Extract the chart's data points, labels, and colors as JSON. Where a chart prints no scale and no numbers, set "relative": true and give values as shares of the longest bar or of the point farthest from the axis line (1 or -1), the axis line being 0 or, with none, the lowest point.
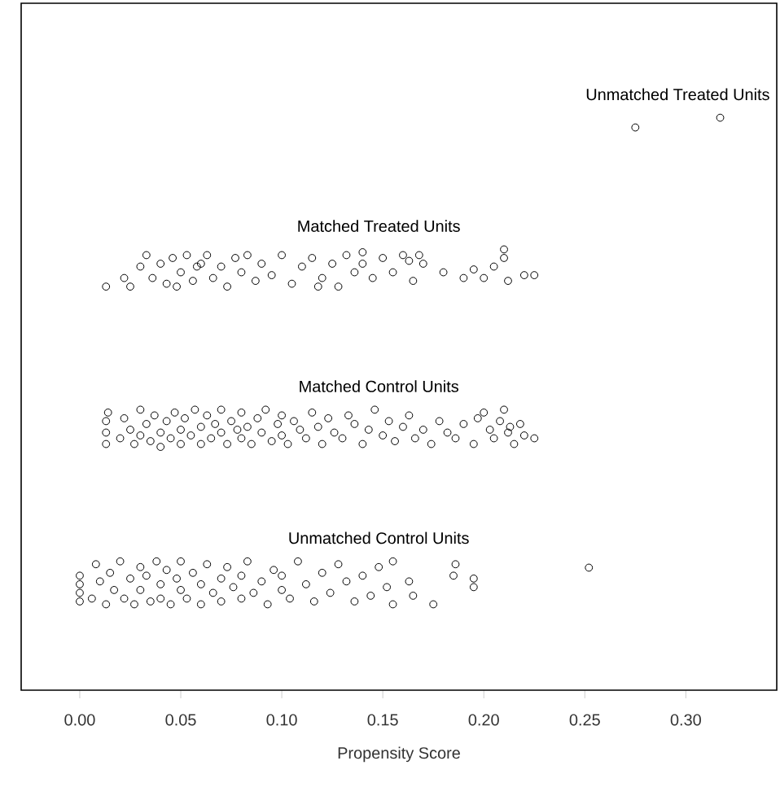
{
  "chart_data": {
    "type": "scatter",
    "xlabel": "Propensity Score",
    "relative": true,
    "marker": "circle",
    "tick_labels": "x",
    "grid": false,
    "xlim": [
      -0.029,
      0.345
    ],
    "xticks": [
      {
        "value": 0,
        "label": "0.00"
      },
      {
        "value": 0.05,
        "label": "0.05"
      },
      {
        "value": 0.1,
        "label": "0.10"
      },
      {
        "value": 0.15,
        "label": "0.15"
      },
      {
        "value": 0.2,
        "label": "0.20"
      },
      {
        "value": 0.25,
        "label": "0.25"
      },
      {
        "value": 0.3,
        "label": "0.30"
      }
    ],
    "series": [
      {
        "name": "Unmatched Treated Units",
        "color": "#000000",
        "x": [
          0.275,
          0.317
        ],
        "values": [
          0.983,
          1.0
        ]
      },
      {
        "name": "Matched Treated Units",
        "color": "#000000",
        "x": [
          0.013,
          0.022,
          0.025,
          0.03,
          0.033,
          0.036,
          0.04,
          0.043,
          0.046,
          0.05,
          0.053,
          0.056,
          0.06,
          0.063,
          0.066,
          0.07,
          0.073,
          0.077,
          0.08,
          0.083,
          0.087,
          0.09,
          0.095,
          0.1,
          0.105,
          0.11,
          0.115,
          0.12,
          0.125,
          0.128,
          0.132,
          0.136,
          0.14,
          0.145,
          0.15,
          0.155,
          0.16,
          0.165,
          0.17,
          0.18,
          0.19,
          0.195,
          0.2,
          0.205,
          0.21,
          0.21,
          0.212,
          0.22,
          0.225,
          0.163,
          0.168,
          0.058,
          0.048,
          0.118,
          0.14
        ],
        "values": [
          0.705,
          0.72,
          0.705,
          0.74,
          0.76,
          0.72,
          0.745,
          0.71,
          0.755,
          0.73,
          0.76,
          0.715,
          0.745,
          0.76,
          0.72,
          0.74,
          0.705,
          0.755,
          0.73,
          0.76,
          0.715,
          0.745,
          0.725,
          0.76,
          0.71,
          0.74,
          0.755,
          0.72,
          0.745,
          0.705,
          0.76,
          0.73,
          0.745,
          0.72,
          0.755,
          0.73,
          0.76,
          0.715,
          0.745,
          0.73,
          0.72,
          0.735,
          0.72,
          0.74,
          0.77,
          0.755,
          0.715,
          0.725,
          0.725,
          0.75,
          0.76,
          0.74,
          0.705,
          0.705,
          0.765
        ]
      },
      {
        "name": "Matched Control Units",
        "color": "#000000",
        "x": [
          0.013,
          0.013,
          0.013,
          0.014,
          0.02,
          0.022,
          0.025,
          0.027,
          0.03,
          0.03,
          0.033,
          0.035,
          0.037,
          0.04,
          0.04,
          0.043,
          0.045,
          0.047,
          0.05,
          0.05,
          0.052,
          0.055,
          0.057,
          0.06,
          0.06,
          0.063,
          0.065,
          0.067,
          0.07,
          0.07,
          0.073,
          0.075,
          0.078,
          0.08,
          0.08,
          0.083,
          0.085,
          0.088,
          0.09,
          0.092,
          0.095,
          0.098,
          0.1,
          0.1,
          0.103,
          0.106,
          0.109,
          0.112,
          0.115,
          0.118,
          0.12,
          0.123,
          0.126,
          0.13,
          0.133,
          0.136,
          0.14,
          0.143,
          0.146,
          0.15,
          0.153,
          0.156,
          0.16,
          0.163,
          0.166,
          0.17,
          0.174,
          0.178,
          0.182,
          0.186,
          0.19,
          0.195,
          0.2,
          0.203,
          0.205,
          0.208,
          0.21,
          0.212,
          0.215,
          0.218,
          0.22,
          0.225,
          0.197,
          0.213
        ],
        "values": [
          0.43,
          0.45,
          0.47,
          0.485,
          0.44,
          0.475,
          0.455,
          0.43,
          0.49,
          0.445,
          0.465,
          0.435,
          0.48,
          0.45,
          0.425,
          0.47,
          0.44,
          0.485,
          0.455,
          0.43,
          0.475,
          0.445,
          0.49,
          0.46,
          0.43,
          0.48,
          0.44,
          0.465,
          0.45,
          0.49,
          0.43,
          0.47,
          0.455,
          0.44,
          0.485,
          0.46,
          0.43,
          0.475,
          0.45,
          0.49,
          0.435,
          0.465,
          0.445,
          0.48,
          0.43,
          0.47,
          0.455,
          0.44,
          0.485,
          0.46,
          0.43,
          0.475,
          0.45,
          0.44,
          0.48,
          0.465,
          0.43,
          0.455,
          0.49,
          0.445,
          0.47,
          0.435,
          0.46,
          0.48,
          0.44,
          0.455,
          0.43,
          0.47,
          0.45,
          0.44,
          0.465,
          0.43,
          0.485,
          0.455,
          0.44,
          0.47,
          0.49,
          0.45,
          0.43,
          0.465,
          0.445,
          0.44,
          0.475,
          0.46
        ]
      },
      {
        "name": "Unmatched Control Units",
        "color": "#000000",
        "x": [
          0.0,
          0.0,
          0.0,
          0.0,
          0.006,
          0.008,
          0.01,
          0.013,
          0.015,
          0.017,
          0.02,
          0.022,
          0.025,
          0.027,
          0.03,
          0.03,
          0.033,
          0.035,
          0.038,
          0.04,
          0.04,
          0.043,
          0.045,
          0.048,
          0.05,
          0.05,
          0.053,
          0.056,
          0.06,
          0.06,
          0.063,
          0.066,
          0.07,
          0.07,
          0.073,
          0.076,
          0.08,
          0.08,
          0.083,
          0.086,
          0.09,
          0.093,
          0.096,
          0.1,
          0.1,
          0.104,
          0.108,
          0.112,
          0.116,
          0.12,
          0.124,
          0.128,
          0.132,
          0.136,
          0.14,
          0.144,
          0.148,
          0.152,
          0.155,
          0.155,
          0.163,
          0.165,
          0.175,
          0.185,
          0.186,
          0.195,
          0.195,
          0.252
        ],
        "values": [
          0.155,
          0.17,
          0.185,
          0.2,
          0.16,
          0.22,
          0.19,
          0.15,
          0.205,
          0.175,
          0.225,
          0.16,
          0.195,
          0.15,
          0.215,
          0.175,
          0.2,
          0.155,
          0.225,
          0.185,
          0.16,
          0.21,
          0.15,
          0.195,
          0.175,
          0.225,
          0.16,
          0.205,
          0.185,
          0.15,
          0.22,
          0.17,
          0.195,
          0.155,
          0.215,
          0.18,
          0.2,
          0.16,
          0.225,
          0.17,
          0.19,
          0.15,
          0.21,
          0.175,
          0.2,
          0.16,
          0.225,
          0.185,
          0.155,
          0.205,
          0.17,
          0.22,
          0.19,
          0.155,
          0.2,
          0.165,
          0.215,
          0.18,
          0.15,
          0.225,
          0.19,
          0.165,
          0.15,
          0.2,
          0.22,
          0.18,
          0.195,
          0.214
        ]
      }
    ]
  }
}
